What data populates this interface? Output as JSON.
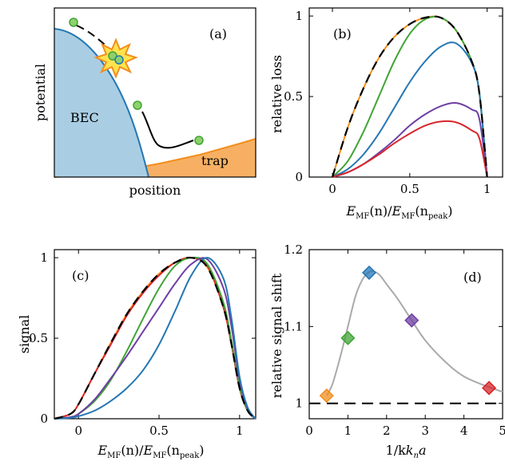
{
  "colors": {
    "orange": "#F28E1C",
    "green": "#3FA535",
    "blue": "#2477B5",
    "purple": "#6E3FA3",
    "red": "#D7262B",
    "black": "#000000",
    "gray": "#AAAAAA",
    "bec_fill": "#A9CEE3",
    "trap_fill": "#F7B063",
    "atom": "#8ED16C"
  },
  "chart_data": [
    {
      "panel": "(a)",
      "type": "diagram",
      "ylabel": "potential",
      "xlabel": "position",
      "labels": [
        "BEC",
        "trap"
      ]
    },
    {
      "panel": "(b)",
      "type": "line",
      "xlabel": "E_MF(n)/E_MF(n_peak)",
      "ylabel": "relative loss",
      "xlim": [
        -0.15,
        1.1
      ],
      "ylim": [
        0,
        1.05
      ],
      "xticks": [
        "0",
        "0.5",
        "1"
      ],
      "yticks": [
        "0",
        "0.5",
        "1"
      ],
      "x": [
        0,
        0.1,
        0.2,
        0.3,
        0.4,
        0.5,
        0.6,
        0.7,
        0.8,
        0.9,
        0.95,
        1.0
      ],
      "series": [
        {
          "color_key": "black",
          "dashed": true,
          "values": [
            0,
            0.31,
            0.55,
            0.74,
            0.87,
            0.95,
            0.99,
            0.99,
            0.91,
            0.72,
            0.52,
            0
          ]
        },
        {
          "color_key": "orange",
          "values": [
            0,
            0.31,
            0.55,
            0.74,
            0.87,
            0.95,
            0.99,
            0.99,
            0.91,
            0.72,
            0.52,
            0
          ]
        },
        {
          "color_key": "green",
          "values": [
            0,
            0.1,
            0.28,
            0.5,
            0.72,
            0.89,
            0.98,
            0.99,
            0.91,
            0.72,
            0.52,
            0
          ]
        },
        {
          "color_key": "blue",
          "values": [
            0,
            0.05,
            0.14,
            0.27,
            0.43,
            0.59,
            0.72,
            0.81,
            0.83,
            0.71,
            0.52,
            0
          ]
        },
        {
          "color_key": "purple",
          "values": [
            0,
            0.03,
            0.08,
            0.15,
            0.23,
            0.32,
            0.39,
            0.44,
            0.46,
            0.42,
            0.36,
            0
          ]
        },
        {
          "color_key": "red",
          "values": [
            0,
            0.03,
            0.08,
            0.14,
            0.21,
            0.27,
            0.32,
            0.345,
            0.34,
            0.29,
            0.24,
            0
          ]
        }
      ]
    },
    {
      "panel": "(c)",
      "type": "line",
      "xlabel": "E_MF(n)/E_MF(n_peak)",
      "ylabel": "signal",
      "xlim": [
        -0.15,
        1.1
      ],
      "ylim": [
        0,
        1.05
      ],
      "xticks": [
        "0",
        "0.5",
        "1"
      ],
      "yticks": [
        "0",
        "0.5",
        "1"
      ],
      "x": [
        -0.15,
        -0.05,
        0,
        0.1,
        0.2,
        0.3,
        0.4,
        0.5,
        0.6,
        0.7,
        0.8,
        0.9,
        0.95,
        1.0,
        1.05,
        1.1
      ],
      "series": [
        {
          "color_key": "black",
          "dashed": true,
          "values": [
            0,
            0.03,
            0.09,
            0.28,
            0.47,
            0.65,
            0.79,
            0.9,
            0.97,
            1.0,
            0.94,
            0.69,
            0.46,
            0.19,
            0.05,
            0
          ]
        },
        {
          "color_key": "orange",
          "values": [
            0,
            0.03,
            0.09,
            0.28,
            0.47,
            0.65,
            0.79,
            0.9,
            0.97,
            1.0,
            0.94,
            0.69,
            0.46,
            0.19,
            0.05,
            0
          ]
        },
        {
          "color_key": "red",
          "values": [
            0,
            0.03,
            0.09,
            0.28,
            0.46,
            0.64,
            0.78,
            0.89,
            0.97,
            1.0,
            0.95,
            0.69,
            0.46,
            0.19,
            0.05,
            0
          ]
        },
        {
          "color_key": "green",
          "values": [
            0,
            0.01,
            0.03,
            0.11,
            0.24,
            0.42,
            0.62,
            0.81,
            0.95,
            1.0,
            0.96,
            0.72,
            0.48,
            0.2,
            0.05,
            0
          ]
        },
        {
          "color_key": "purple",
          "values": [
            0,
            0.01,
            0.03,
            0.12,
            0.25,
            0.39,
            0.54,
            0.69,
            0.84,
            0.96,
            0.99,
            0.81,
            0.57,
            0.24,
            0.06,
            0
          ]
        },
        {
          "color_key": "blue",
          "values": [
            0,
            0.005,
            0.015,
            0.05,
            0.11,
            0.19,
            0.3,
            0.46,
            0.67,
            0.89,
            1.0,
            0.87,
            0.62,
            0.26,
            0.07,
            0
          ]
        }
      ]
    },
    {
      "panel": "(d)",
      "type": "scatter",
      "xlabel": "1/k_n a",
      "ylabel": "relative signal shift",
      "xlim": [
        0,
        5
      ],
      "ylim": [
        0.98,
        1.2
      ],
      "xticks": [
        "0",
        "1",
        "2",
        "3",
        "4",
        "5"
      ],
      "yticks": [
        "1",
        "1.1",
        "1.2"
      ],
      "reference_y": 1.0,
      "points": [
        {
          "x": 0.45,
          "y": 1.01,
          "color_key": "orange"
        },
        {
          "x": 1.0,
          "y": 1.085,
          "color_key": "green"
        },
        {
          "x": 1.55,
          "y": 1.17,
          "color_key": "blue"
        },
        {
          "x": 2.65,
          "y": 1.108,
          "color_key": "purple"
        },
        {
          "x": 4.65,
          "y": 1.02,
          "color_key": "red"
        }
      ],
      "curve": {
        "x": [
          0.45,
          0.6,
          0.8,
          1.0,
          1.2,
          1.4,
          1.6,
          1.8,
          2.0,
          2.3,
          2.65,
          3.0,
          3.5,
          4.0,
          4.65,
          5.0
        ],
        "y": [
          1.01,
          1.025,
          1.06,
          1.1,
          1.14,
          1.163,
          1.172,
          1.168,
          1.155,
          1.135,
          1.108,
          1.082,
          1.055,
          1.035,
          1.021,
          1.015
        ]
      }
    }
  ],
  "text": {
    "a": {
      "panel": "(a)",
      "ylabel": "potential",
      "xlabel": "position",
      "bec": "BEC",
      "trap": "trap"
    },
    "b": {
      "panel": "(b)",
      "ylabel": "relative loss"
    },
    "c": {
      "panel": "(c)",
      "ylabel": "signal"
    },
    "d": {
      "panel": "(d)",
      "ylabel": "relative signal shift",
      "xlabel_main": "1/k",
      "xlabel_sub": "n",
      "xlabel_tail": "a"
    },
    "xE": {
      "E": "E",
      "mf": "MF",
      "n": "(n)/",
      "E2": "E",
      "mf2": "MF",
      "open": "(n",
      "peak": "peak",
      "close": ")"
    }
  }
}
